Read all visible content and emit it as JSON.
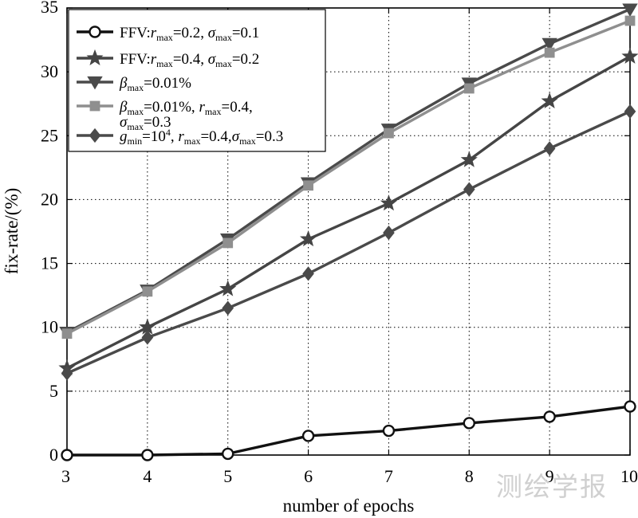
{
  "chart_data": {
    "type": "line",
    "xlabel": "number of epochs",
    "ylabel": "fix-rate/(%)",
    "x": [
      3,
      4,
      5,
      6,
      7,
      8,
      9,
      10
    ],
    "xlim": [
      3,
      10
    ],
    "ylim": [
      0,
      35
    ],
    "xticks": [
      "3",
      "4",
      "5",
      "6",
      "7",
      "8",
      "9",
      "10"
    ],
    "yticks": [
      "0",
      "5",
      "10",
      "15",
      "20",
      "25",
      "30",
      "35"
    ],
    "grid": true,
    "legend_position": "top-left",
    "series": [
      {
        "legend": {
          "prefix": "FFV:",
          "var1": "r",
          "sub1": "max",
          "rest1": "=0.2, ",
          "var2": "σ",
          "sub2": "max",
          "rest2": "=0.1"
        },
        "marker": "circle",
        "color": "#111111",
        "values": [
          0.0,
          0.0,
          0.1,
          1.5,
          1.9,
          2.5,
          3.0,
          3.8
        ]
      },
      {
        "legend": {
          "prefix": "FFV:",
          "var1": "r",
          "sub1": "max",
          "rest1": "=0.4, ",
          "var2": "σ",
          "sub2": "max",
          "rest2": "=0.2"
        },
        "marker": "star",
        "color": "#454545",
        "values": [
          6.8,
          10.0,
          13.0,
          16.9,
          19.7,
          23.1,
          27.7,
          31.2
        ]
      },
      {
        "legend": {
          "var1": "β",
          "sub1": "max",
          "rest1": "=0.01%"
        },
        "marker": "triangle-down",
        "color": "#4a4a4a",
        "values": [
          9.6,
          12.9,
          16.9,
          21.3,
          25.5,
          29.1,
          32.2,
          34.9
        ]
      },
      {
        "legend": {
          "var1": "β",
          "sub1": "max",
          "rest1": "=0.01%, ",
          "var2": "r",
          "sub2": "max",
          "rest2": "=0.4,",
          "line2_var": "σ",
          "line2_sub": "max",
          "line2_rest": "=0.3"
        },
        "marker": "square",
        "color": "#8f8f8f",
        "values": [
          9.5,
          12.8,
          16.6,
          21.1,
          25.2,
          28.7,
          31.5,
          34.0
        ]
      },
      {
        "legend": {
          "var1": "g",
          "sub1": "min",
          "rest1": "=10",
          "sup1": "4",
          "rest1b": ", ",
          "var2": "r",
          "sub2": "max",
          "rest2": "=0.4,",
          "var3": "σ",
          "sub3": "max",
          "rest3": "=0.3"
        },
        "marker": "diamond",
        "color": "#4a4a4a",
        "values": [
          6.4,
          9.2,
          11.5,
          14.2,
          17.4,
          20.8,
          24.0,
          26.9
        ]
      }
    ]
  },
  "watermark": "测绘学报"
}
